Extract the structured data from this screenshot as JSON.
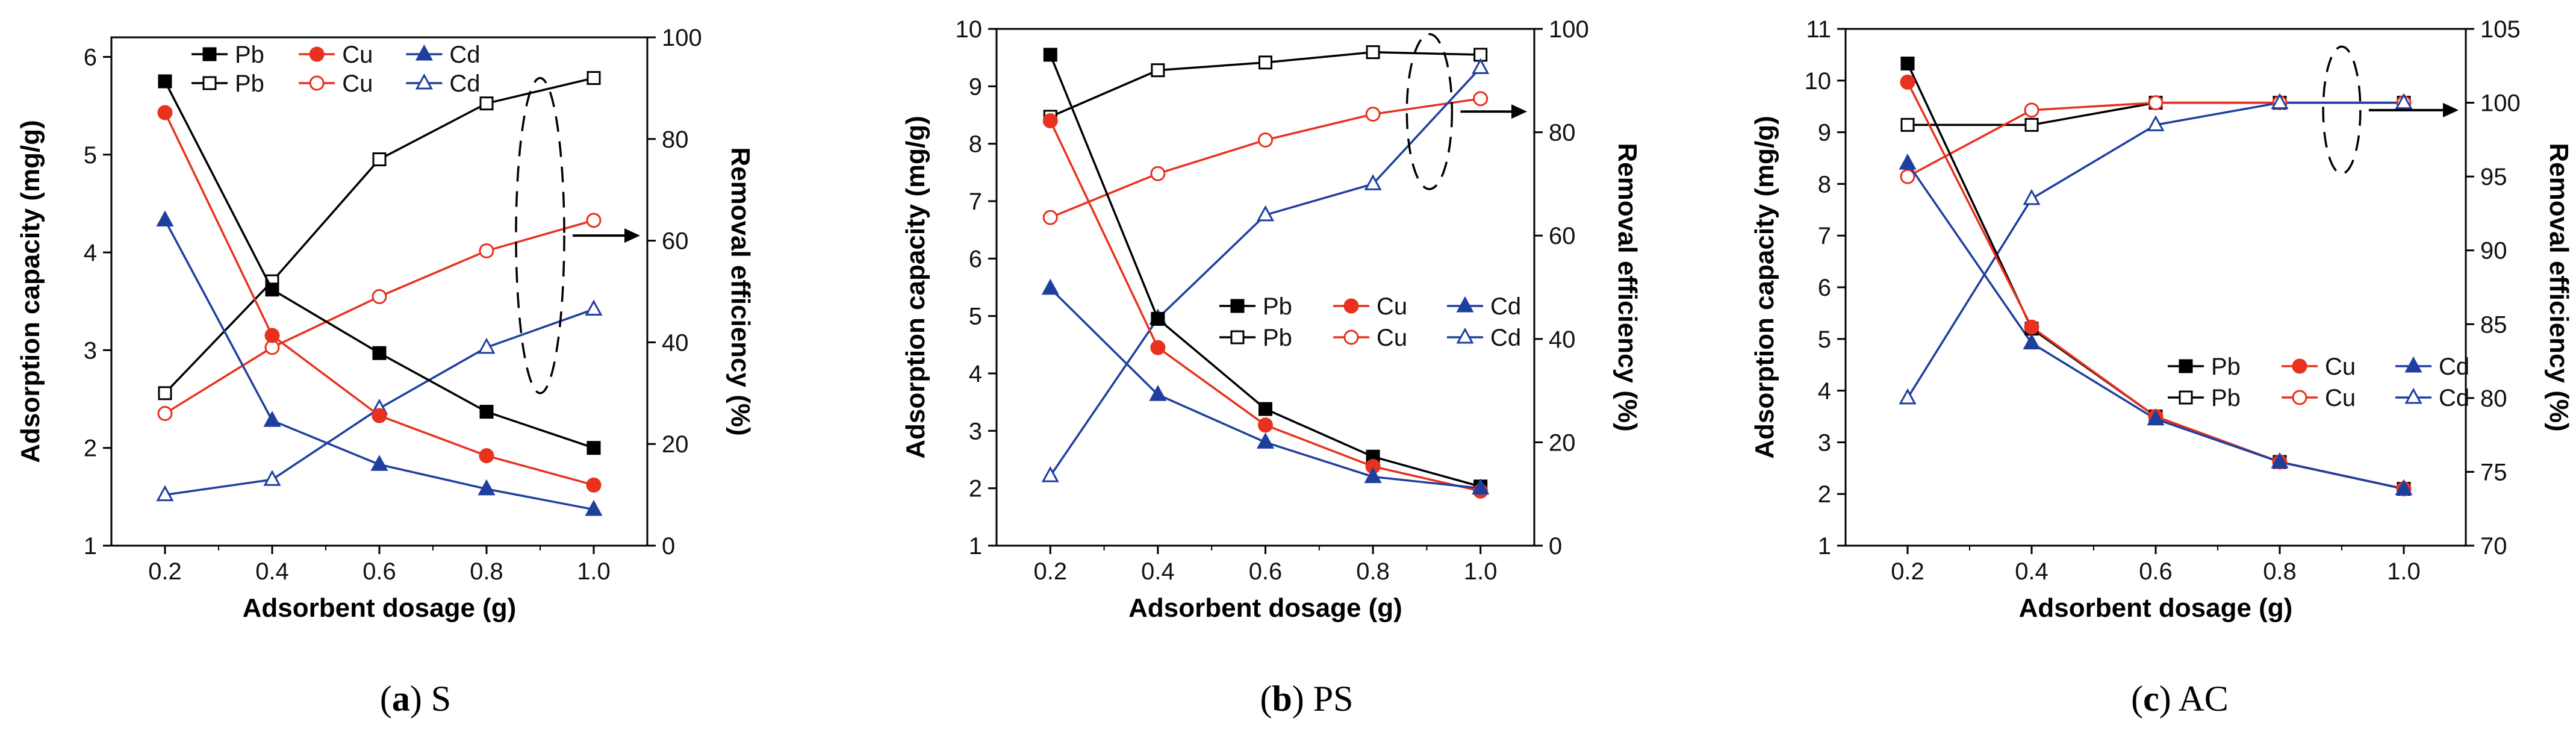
{
  "chart_data": [
    {
      "type": "line",
      "panel_label": "a",
      "panel_name": "S",
      "xlabel": "Adsorbent dosage (g)",
      "ylabel": "Adsorption capacity (mg/g)",
      "y2label": "Removal efficiency (%)",
      "x": [
        0.2,
        0.4,
        0.6,
        0.8,
        1.0
      ],
      "xticks": [
        "0.2",
        "0.4",
        "0.6",
        "0.8",
        "1.0"
      ],
      "xlim": [
        0.1,
        1.1
      ],
      "ylim": [
        1,
        6.2
      ],
      "yticks": [
        1,
        2,
        3,
        4,
        5,
        6
      ],
      "y2lim": [
        0,
        100
      ],
      "y2ticks": [
        0,
        20,
        40,
        60,
        80,
        100
      ],
      "legend_position": "top-left",
      "capacity_series": [
        {
          "name": "Pb",
          "color": "#000000",
          "values": [
            5.75,
            3.62,
            2.97,
            2.37,
            2.0
          ]
        },
        {
          "name": "Cu",
          "color": "#e8311e",
          "values": [
            5.43,
            3.15,
            2.33,
            1.92,
            1.62
          ]
        },
        {
          "name": "Cd",
          "color": "#1f3f9f",
          "values": [
            4.33,
            2.28,
            1.83,
            1.58,
            1.37
          ]
        }
      ],
      "efficiency_series": [
        {
          "name": "Pb",
          "color": "#000000",
          "values": [
            30.0,
            52.0,
            76.0,
            87.0,
            92.0
          ]
        },
        {
          "name": "Cu",
          "color": "#e8311e",
          "values": [
            26.0,
            39.0,
            49.0,
            58.0,
            64.0
          ]
        },
        {
          "name": "Cd",
          "color": "#1f3f9f",
          "values": [
            10.0,
            13.0,
            27.0,
            39.0,
            46.5
          ]
        }
      ],
      "ellipse_center": [
        0.9,
        61
      ],
      "ellipse_radii": [
        0.045,
        31
      ]
    },
    {
      "type": "line",
      "panel_label": "b",
      "panel_name": "PS",
      "xlabel": "Adsorbent dosage (g)",
      "ylabel": "Adsorption capacity (mg/g)",
      "y2label": "Removal efficiency (%)",
      "x": [
        0.2,
        0.4,
        0.6,
        0.8,
        1.0
      ],
      "xticks": [
        "0.2",
        "0.4",
        "0.6",
        "0.8",
        "1.0"
      ],
      "xlim": [
        0.1,
        1.1
      ],
      "ylim": [
        1,
        10
      ],
      "yticks": [
        1,
        2,
        3,
        4,
        5,
        6,
        7,
        8,
        9,
        10
      ],
      "y2lim": [
        0,
        100
      ],
      "y2ticks": [
        0,
        20,
        40,
        60,
        80,
        100
      ],
      "legend_position": "center-right",
      "capacity_series": [
        {
          "name": "Pb",
          "color": "#000000",
          "values": [
            9.55,
            4.95,
            3.38,
            2.55,
            2.03
          ]
        },
        {
          "name": "Cu",
          "color": "#e8311e",
          "values": [
            8.4,
            4.45,
            3.1,
            2.38,
            1.95
          ]
        },
        {
          "name": "Cd",
          "color": "#1f3f9f",
          "values": [
            5.48,
            3.63,
            2.8,
            2.2,
            2.0
          ]
        }
      ],
      "efficiency_series": [
        {
          "name": "Pb",
          "color": "#000000",
          "values": [
            83.0,
            92.0,
            93.5,
            95.5,
            95.0
          ]
        },
        {
          "name": "Cu",
          "color": "#e8311e",
          "values": [
            63.5,
            72.0,
            78.5,
            83.5,
            86.5
          ]
        },
        {
          "name": "Cd",
          "color": "#1f3f9f",
          "values": [
            13.5,
            44.0,
            64.0,
            70.0,
            92.5
          ]
        }
      ],
      "ellipse_center": [
        0.905,
        84
      ],
      "ellipse_radii": [
        0.042,
        15
      ]
    },
    {
      "type": "line",
      "panel_label": "c",
      "panel_name": "AC",
      "xlabel": "Adsorbent dosage (g)",
      "ylabel": "Adsorption capacity (mg/g)",
      "y2label": "Removal efficiency (%)",
      "x": [
        0.2,
        0.4,
        0.6,
        0.8,
        1.0
      ],
      "xticks": [
        "0.2",
        "0.4",
        "0.6",
        "0.8",
        "1.0"
      ],
      "xlim": [
        0.1,
        1.1
      ],
      "ylim": [
        1,
        11
      ],
      "yticks": [
        1,
        2,
        3,
        4,
        5,
        6,
        7,
        8,
        9,
        10,
        11
      ],
      "y2lim": [
        70,
        105
      ],
      "y2ticks": [
        70,
        75,
        80,
        85,
        90,
        95,
        100,
        105
      ],
      "legend_position": "center-right",
      "capacity_series": [
        {
          "name": "Pb",
          "color": "#000000",
          "values": [
            10.33,
            5.2,
            3.5,
            2.62,
            2.1
          ]
        },
        {
          "name": "Cu",
          "color": "#e8311e",
          "values": [
            9.97,
            5.23,
            3.5,
            2.62,
            2.1
          ]
        },
        {
          "name": "Cd",
          "color": "#1f3f9f",
          "values": [
            8.4,
            4.92,
            3.45,
            2.62,
            2.1
          ]
        }
      ],
      "efficiency_series": [
        {
          "name": "Pb",
          "color": "#000000",
          "values": [
            98.5,
            98.5,
            100.0,
            100.0,
            100.0
          ]
        },
        {
          "name": "Cu",
          "color": "#e8311e",
          "values": [
            95.0,
            99.5,
            100.0,
            100.0,
            100.0
          ]
        },
        {
          "name": "Cd",
          "color": "#1f3f9f",
          "values": [
            80.0,
            93.5,
            98.5,
            100.0,
            100.0
          ]
        }
      ],
      "ellipse_center": [
        0.9,
        99.5
      ],
      "ellipse_radii": [
        0.03,
        4.3
      ]
    }
  ]
}
